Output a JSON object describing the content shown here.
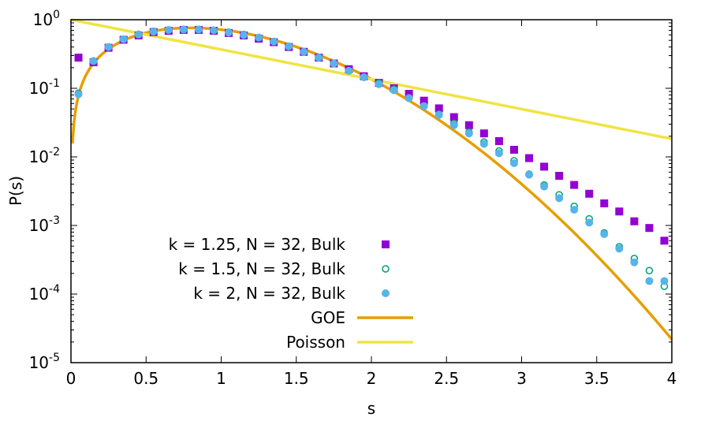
{
  "chart_data": {
    "type": "scatter",
    "title": "",
    "xlabel": "s",
    "ylabel": "P(s)",
    "xlim": [
      0,
      4
    ],
    "ylim": [
      1e-05,
      1
    ],
    "yscale": "log",
    "x_ticks": [
      0,
      0.5,
      1,
      1.5,
      2,
      2.5,
      3,
      3.5,
      4
    ],
    "x_tick_labels": [
      "0",
      "0.5",
      "1",
      "1.5",
      "2",
      "2.5",
      "3",
      "3.5",
      "4"
    ],
    "y_ticks": [
      {
        "value": 1e-05,
        "base": "10",
        "exp": "-5"
      },
      {
        "value": 0.0001,
        "base": "10",
        "exp": "-4"
      },
      {
        "value": 0.001,
        "base": "10",
        "exp": "-3"
      },
      {
        "value": 0.01,
        "base": "10",
        "exp": "-2"
      },
      {
        "value": 0.1,
        "base": "10",
        "exp": "-1"
      },
      {
        "value": 1,
        "base": "10",
        "exp": "0"
      }
    ],
    "legend_position": "bottom-left",
    "series": [
      {
        "name": "k = 1.25, N = 32, Bulk",
        "marker": "filled-square",
        "color": "#9400d3",
        "x": [
          0.05,
          0.15,
          0.25,
          0.35,
          0.45,
          0.55,
          0.65,
          0.75,
          0.85,
          0.95,
          1.05,
          1.15,
          1.25,
          1.35,
          1.45,
          1.55,
          1.65,
          1.75,
          1.85,
          1.95,
          2.05,
          2.15,
          2.25,
          2.35,
          2.45,
          2.55,
          2.65,
          2.75,
          2.85,
          2.95,
          3.05,
          3.15,
          3.25,
          3.35,
          3.45,
          3.55,
          3.65,
          3.75,
          3.85,
          3.95
        ],
        "y": [
          0.28,
          0.24,
          0.39,
          0.51,
          0.59,
          0.66,
          0.69,
          0.71,
          0.71,
          0.69,
          0.64,
          0.59,
          0.53,
          0.47,
          0.4,
          0.34,
          0.28,
          0.23,
          0.19,
          0.15,
          0.12,
          0.1,
          0.083,
          0.066,
          0.051,
          0.038,
          0.029,
          0.022,
          0.017,
          0.0127,
          0.0096,
          0.0072,
          0.0053,
          0.0039,
          0.0029,
          0.0021,
          0.0016,
          0.00115,
          0.00092,
          0.0006
        ]
      },
      {
        "name": "k = 1.5, N = 32, Bulk",
        "marker": "open-circle",
        "color": "#009e73",
        "x": [
          0.05,
          0.15,
          0.25,
          0.35,
          0.45,
          0.55,
          0.65,
          0.75,
          0.85,
          0.95,
          1.05,
          1.15,
          1.25,
          1.35,
          1.45,
          1.55,
          1.65,
          1.75,
          1.85,
          1.95,
          2.05,
          2.15,
          2.25,
          2.35,
          2.45,
          2.55,
          2.65,
          2.75,
          2.85,
          2.95,
          3.05,
          3.15,
          3.25,
          3.35,
          3.45,
          3.55,
          3.65,
          3.75,
          3.85,
          3.95
        ],
        "y": [
          0.085,
          0.25,
          0.4,
          0.52,
          0.61,
          0.68,
          0.71,
          0.72,
          0.72,
          0.7,
          0.66,
          0.61,
          0.55,
          0.48,
          0.41,
          0.34,
          0.28,
          0.23,
          0.18,
          0.145,
          0.12,
          0.097,
          0.072,
          0.055,
          0.042,
          0.031,
          0.023,
          0.0165,
          0.0122,
          0.0088,
          0.0056,
          0.0039,
          0.0028,
          0.0019,
          0.00125,
          0.00078,
          0.00049,
          0.00033,
          0.00022,
          0.00013
        ]
      },
      {
        "name": "k = 2, N = 32, Bulk",
        "marker": "filled-circle",
        "color": "#56b4e9",
        "x": [
          0.05,
          0.15,
          0.25,
          0.35,
          0.45,
          0.55,
          0.65,
          0.75,
          0.85,
          0.95,
          1.05,
          1.15,
          1.25,
          1.35,
          1.45,
          1.55,
          1.65,
          1.75,
          1.85,
          1.95,
          2.05,
          2.15,
          2.25,
          2.35,
          2.45,
          2.55,
          2.65,
          2.75,
          2.85,
          2.95,
          3.05,
          3.15,
          3.25,
          3.35,
          3.45,
          3.55,
          3.65,
          3.75,
          3.85,
          3.95
        ],
        "y": [
          0.082,
          0.25,
          0.4,
          0.52,
          0.61,
          0.67,
          0.71,
          0.72,
          0.72,
          0.7,
          0.65,
          0.6,
          0.55,
          0.48,
          0.41,
          0.34,
          0.28,
          0.23,
          0.18,
          0.145,
          0.115,
          0.094,
          0.072,
          0.055,
          0.041,
          0.029,
          0.022,
          0.0155,
          0.0113,
          0.0081,
          0.0055,
          0.0037,
          0.0025,
          0.0017,
          0.0011,
          0.00075,
          0.00046,
          0.00029,
          0.000155,
          0.000155
        ]
      },
      {
        "name": "GOE",
        "marker": "line",
        "color": "#e69f00",
        "formula": "(pi/2) s exp(-pi s^2 / 4)"
      },
      {
        "name": "Poisson",
        "marker": "line",
        "color": "#f0e442",
        "formula": "exp(-s)"
      }
    ]
  }
}
